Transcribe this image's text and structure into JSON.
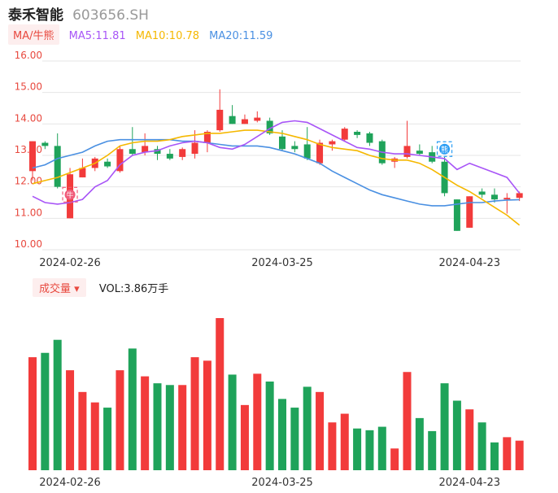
{
  "header": {
    "name": "泰禾智能",
    "code": "603656.SH"
  },
  "ma": {
    "label": "MA/牛熊",
    "ma5": "MA5:11.81",
    "ma10": "MA10:10.78",
    "ma20": "MA20:11.59",
    "colors": {
      "ma5": "#a855f7",
      "ma10": "#f5b800",
      "ma20": "#4a90e2"
    }
  },
  "volume": {
    "label": "成交量",
    "text": "VOL:3.86万手"
  },
  "colors": {
    "up": "#f23b3b",
    "down": "#1fa35a",
    "axis_label": "#e8493f",
    "grid": "#e6e6e6"
  },
  "markers": {
    "bull": "牛",
    "bear": "熊"
  },
  "chart_data": [
    {
      "type": "candlestick",
      "y_ticks": [
        "16.00",
        "15.00",
        "14.00",
        "13.00",
        "12.00",
        "11.00",
        "10.00"
      ],
      "ylim": [
        10.0,
        16.0
      ],
      "x_labels": [
        {
          "index": 3,
          "label": "2024-02-26"
        },
        {
          "index": 20,
          "label": "2024-03-25"
        },
        {
          "index": 35,
          "label": "2024-04-23"
        }
      ],
      "candles": [
        {
          "o": 12.5,
          "c": 13.45,
          "h": 13.45,
          "l": 12.2
        },
        {
          "o": 13.4,
          "c": 13.3,
          "h": 13.45,
          "l": 13.2
        },
        {
          "o": 13.3,
          "c": 12.0,
          "h": 13.7,
          "l": 11.95
        },
        {
          "o": 11.0,
          "c": 12.4,
          "h": 12.6,
          "l": 11.0
        },
        {
          "o": 12.3,
          "c": 12.6,
          "h": 12.9,
          "l": 12.3
        },
        {
          "o": 12.6,
          "c": 12.9,
          "h": 12.95,
          "l": 12.5
        },
        {
          "o": 12.8,
          "c": 12.65,
          "h": 12.9,
          "l": 12.6
        },
        {
          "o": 12.5,
          "c": 13.2,
          "h": 13.3,
          "l": 12.45
        },
        {
          "o": 13.2,
          "c": 13.05,
          "h": 13.9,
          "l": 13.0
        },
        {
          "o": 13.1,
          "c": 13.3,
          "h": 13.7,
          "l": 13.0
        },
        {
          "o": 13.2,
          "c": 13.05,
          "h": 13.3,
          "l": 12.85
        },
        {
          "o": 13.05,
          "c": 12.9,
          "h": 13.2,
          "l": 12.85
        },
        {
          "o": 12.95,
          "c": 13.2,
          "h": 13.25,
          "l": 12.85
        },
        {
          "o": 13.05,
          "c": 13.4,
          "h": 13.8,
          "l": 12.9
        },
        {
          "o": 13.4,
          "c": 13.75,
          "h": 13.8,
          "l": 13.1
        },
        {
          "o": 13.8,
          "c": 14.45,
          "h": 15.1,
          "l": 13.75
        },
        {
          "o": 14.25,
          "c": 14.0,
          "h": 14.6,
          "l": 14.0
        },
        {
          "o": 14.0,
          "c": 14.15,
          "h": 14.3,
          "l": 14.0
        },
        {
          "o": 14.1,
          "c": 14.2,
          "h": 14.4,
          "l": 14.05
        },
        {
          "o": 14.1,
          "c": 13.7,
          "h": 14.2,
          "l": 13.65
        },
        {
          "o": 13.6,
          "c": 13.2,
          "h": 13.8,
          "l": 13.15
        },
        {
          "o": 13.3,
          "c": 13.2,
          "h": 13.45,
          "l": 13.1
        },
        {
          "o": 13.35,
          "c": 12.9,
          "h": 13.9,
          "l": 12.85
        },
        {
          "o": 12.75,
          "c": 13.4,
          "h": 13.5,
          "l": 12.7
        },
        {
          "o": 13.35,
          "c": 13.45,
          "h": 13.5,
          "l": 13.15
        },
        {
          "o": 13.5,
          "c": 13.85,
          "h": 13.9,
          "l": 13.45
        },
        {
          "o": 13.75,
          "c": 13.65,
          "h": 13.8,
          "l": 13.55
        },
        {
          "o": 13.7,
          "c": 13.4,
          "h": 13.75,
          "l": 13.3
        },
        {
          "o": 13.45,
          "c": 12.75,
          "h": 13.5,
          "l": 12.7
        },
        {
          "o": 12.8,
          "c": 12.9,
          "h": 12.95,
          "l": 12.6
        },
        {
          "o": 12.95,
          "c": 13.3,
          "h": 14.1,
          "l": 12.9
        },
        {
          "o": 13.15,
          "c": 13.05,
          "h": 13.35,
          "l": 13.0
        },
        {
          "o": 13.1,
          "c": 12.8,
          "h": 13.3,
          "l": 12.75
        },
        {
          "o": 12.8,
          "c": 11.8,
          "h": 12.95,
          "l": 11.7
        },
        {
          "o": 11.6,
          "c": 10.6,
          "h": 11.6,
          "l": 10.6
        },
        {
          "o": 10.7,
          "c": 11.7,
          "h": 11.7,
          "l": 10.7
        },
        {
          "o": 11.85,
          "c": 11.75,
          "h": 11.95,
          "l": 11.65
        },
        {
          "o": 11.75,
          "c": 11.6,
          "h": 11.95,
          "l": 11.5
        },
        {
          "o": 11.6,
          "c": 11.65,
          "h": 11.8,
          "l": 11.15
        },
        {
          "o": 11.65,
          "c": 11.8,
          "h": 11.85,
          "l": 11.55
        }
      ],
      "ma5": [
        11.7,
        11.5,
        11.45,
        11.5,
        11.6,
        12.0,
        12.2,
        12.7,
        13.0,
        13.1,
        13.15,
        13.3,
        13.4,
        13.45,
        13.4,
        13.25,
        13.2,
        13.35,
        13.6,
        13.85,
        14.05,
        14.1,
        14.05,
        13.85,
        13.65,
        13.45,
        13.25,
        13.2,
        13.1,
        13.05,
        13.05,
        13.0,
        12.95,
        12.9,
        12.55,
        12.75,
        12.6,
        12.45,
        12.3,
        11.8
      ],
      "ma10": [
        12.1,
        12.2,
        12.3,
        12.45,
        12.6,
        12.75,
        13.0,
        13.3,
        13.4,
        13.45,
        13.45,
        13.5,
        13.6,
        13.65,
        13.7,
        13.7,
        13.75,
        13.8,
        13.8,
        13.75,
        13.7,
        13.6,
        13.5,
        13.35,
        13.25,
        13.2,
        13.15,
        13.0,
        12.9,
        12.85,
        12.85,
        12.75,
        12.55,
        12.3,
        12.05,
        11.85,
        11.6,
        11.35,
        11.1,
        10.78
      ],
      "ma20": [
        12.6,
        12.7,
        12.9,
        13.0,
        13.1,
        13.3,
        13.45,
        13.5,
        13.5,
        13.5,
        13.5,
        13.5,
        13.45,
        13.45,
        13.4,
        13.35,
        13.3,
        13.3,
        13.3,
        13.25,
        13.15,
        13.05,
        12.9,
        12.75,
        12.5,
        12.3,
        12.1,
        11.9,
        11.75,
        11.65,
        11.55,
        11.45,
        11.4,
        11.4,
        11.45,
        11.5,
        11.5,
        11.55,
        11.58,
        11.59
      ]
    },
    {
      "type": "bar",
      "x_labels": [
        {
          "index": 3,
          "label": "2024-02-26"
        },
        {
          "index": 20,
          "label": "2024-03-25"
        },
        {
          "index": 35,
          "label": "2024-04-23"
        }
      ],
      "values": [
        130,
        135,
        150,
        115,
        90,
        78,
        72,
        115,
        140,
        108,
        100,
        98,
        98,
        130,
        126,
        175,
        110,
        75,
        111,
        102,
        82,
        72,
        96,
        90,
        55,
        65,
        48,
        46,
        50,
        25,
        113,
        60,
        45,
        100,
        80,
        70,
        55,
        32,
        38,
        34
      ],
      "up": [
        true,
        false,
        false,
        true,
        true,
        true,
        false,
        true,
        false,
        true,
        false,
        false,
        true,
        true,
        true,
        true,
        false,
        true,
        true,
        false,
        false,
        false,
        false,
        true,
        true,
        true,
        false,
        false,
        false,
        true,
        true,
        false,
        false,
        false,
        false,
        true,
        false,
        false,
        true,
        true
      ]
    }
  ]
}
